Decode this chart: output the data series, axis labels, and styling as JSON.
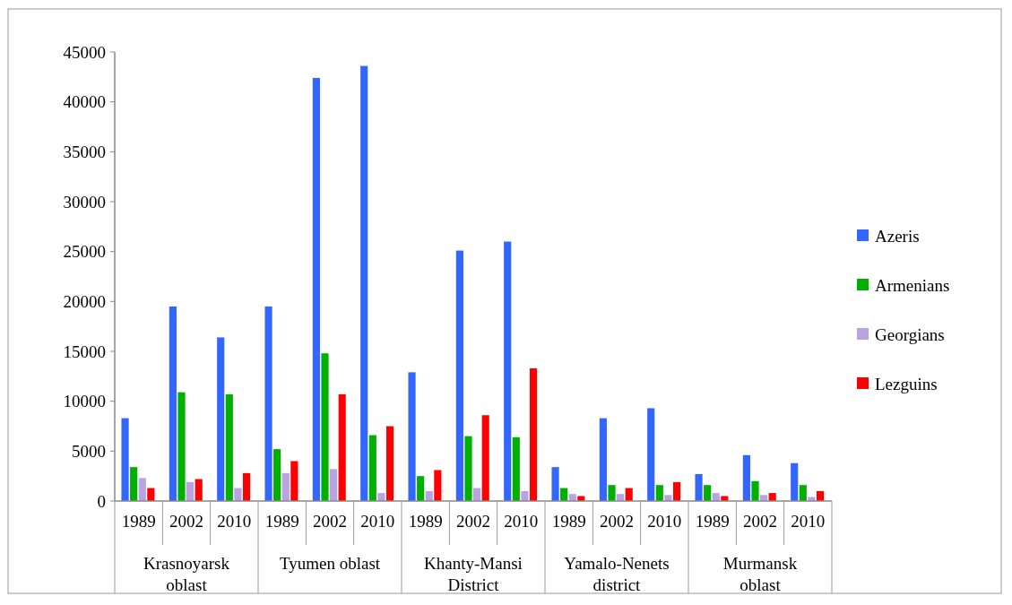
{
  "chart_data": {
    "type": "bar",
    "categories": [
      "1989",
      "2002",
      "2010",
      "1989",
      "2002",
      "2010",
      "1989",
      "2002",
      "2010",
      "1989",
      "2002",
      "2010",
      "1989",
      "2002",
      "2010"
    ],
    "series": [
      {
        "name": "Azeris",
        "color": "#3366ff",
        "values": [
          8300,
          19500,
          16400,
          19500,
          42400,
          43600,
          12900,
          25100,
          26000,
          3400,
          8300,
          9300,
          2700,
          4600,
          3800
        ]
      },
      {
        "name": "Armenians",
        "color": "#00b000",
        "values": [
          3400,
          10900,
          10700,
          5200,
          14800,
          6600,
          2500,
          6500,
          6400,
          1300,
          1600,
          1600,
          1600,
          2000,
          1600
        ]
      },
      {
        "name": "Georgians",
        "color": "#b9a3e0",
        "values": [
          2300,
          1900,
          1300,
          2800,
          3200,
          800,
          1000,
          1300,
          1000,
          700,
          700,
          600,
          800,
          600,
          400
        ]
      },
      {
        "name": "Lezguins",
        "color": "#ff0000",
        "values": [
          1300,
          2200,
          2800,
          4000,
          10700,
          7500,
          3100,
          8600,
          13300,
          500,
          1300,
          1900,
          500,
          800,
          1000
        ]
      }
    ],
    "annotations": [
      "Krasnoyarsk oblast",
      "Tyumen oblast",
      "Khanty-Mansi District",
      "Yamalo-Nenets district",
      "Murmansk oblast"
    ],
    "ylim": [
      0,
      45000
    ],
    "yticks": [
      0,
      5000,
      10000,
      15000,
      20000,
      25000,
      30000,
      35000,
      40000,
      45000
    ],
    "grid": false,
    "legend": "right"
  }
}
